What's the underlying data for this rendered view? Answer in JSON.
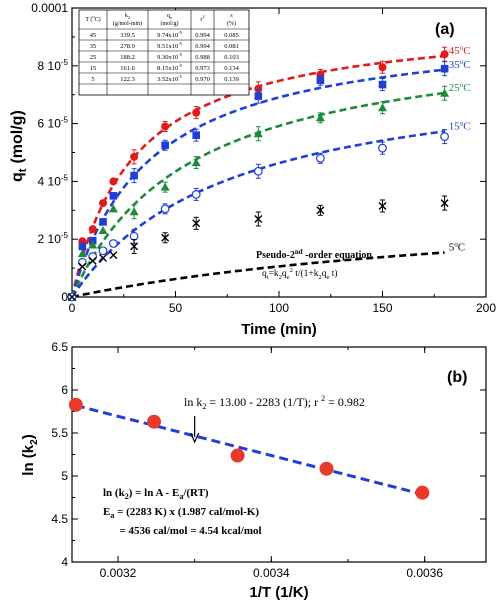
{
  "chart_data": [
    {
      "type": "scatter",
      "panel_label": "(a)",
      "xlabel": "Time  (min)",
      "ylabel": "q",
      "ylabel_sub": "t",
      "ylabel_unit": "(mol/g)",
      "xlim": [
        0,
        200
      ],
      "ylim": [
        0,
        0.0001
      ],
      "x_ticks": [
        0,
        50,
        100,
        150,
        200
      ],
      "x_tick_labels": [
        "0",
        "50",
        "100",
        "150",
        "200"
      ],
      "y_ticks": [
        0,
        2e-05,
        4e-05,
        6e-05,
        8e-05,
        0.0001
      ],
      "y_tick_labels": [
        {
          "m": "0",
          "e": ""
        },
        {
          "m": "2 10",
          "e": "-5"
        },
        {
          "m": "4 10",
          "e": "-5"
        },
        {
          "m": "6 10",
          "e": "-5"
        },
        {
          "m": "8 10",
          "e": "-5"
        },
        {
          "m": "0.0001",
          "e": ""
        }
      ],
      "series": [
        {
          "name": "45",
          "color": "#e31a1c",
          "marker": "filled-circle",
          "x": [
            0,
            5,
            10,
            15,
            20,
            30,
            45,
            60,
            90,
            120,
            150,
            180
          ],
          "y": [
            0,
            1.93e-05,
            2.35e-05,
            3.25e-05,
            4e-05,
            4.85e-05,
            5.9e-05,
            6.38e-05,
            7.2e-05,
            7.7e-05,
            7.95e-05,
            8.4e-05
          ],
          "fit": {
            "qe": 9.74e-05,
            "k2": 339.5
          }
        },
        {
          "name": "35",
          "color": "#1f3fd6",
          "marker": "filled-square",
          "x": [
            0,
            5,
            10,
            15,
            20,
            30,
            45,
            60,
            90,
            120,
            150,
            180
          ],
          "y": [
            0,
            1.75e-05,
            1.95e-05,
            2.6e-05,
            3.5e-05,
            4.2e-05,
            5.25e-05,
            5.6e-05,
            6.95e-05,
            7.5e-05,
            7.35e-05,
            7.9e-05
          ],
          "fit": {
            "qe": 9.51e-05,
            "k2": 278.9
          }
        },
        {
          "name": "25",
          "color": "#1e8a3a",
          "marker": "filled-triangle",
          "x": [
            0,
            5,
            10,
            15,
            20,
            30,
            45,
            60,
            90,
            120,
            150,
            180
          ],
          "y": [
            0,
            1.5e-05,
            1.8e-05,
            2.3e-05,
            3.05e-05,
            2.95e-05,
            3.8e-05,
            4.65e-05,
            5.65e-05,
            6.2e-05,
            6.55e-05,
            7.05e-05
          ],
          "fit": {
            "qe": 9.3e-05,
            "k2": 188.2
          }
        },
        {
          "name": "15",
          "color": "#1f3fd6",
          "marker": "open-circle",
          "x": [
            0,
            5,
            10,
            15,
            20,
            30,
            45,
            60,
            90,
            120,
            150,
            180
          ],
          "y": [
            0,
            1.2e-05,
            1.4e-05,
            1.6e-05,
            1.85e-05,
            2.1e-05,
            3.05e-05,
            3.55e-05,
            4.35e-05,
            4.8e-05,
            5.15e-05,
            5.55e-05
          ],
          "fit": {
            "qe": 8.15e-05,
            "k2": 161.6
          }
        },
        {
          "name": "5",
          "color": "#000000",
          "marker": "x",
          "x": [
            0,
            5,
            10,
            15,
            20,
            30,
            45,
            60,
            90,
            120,
            150,
            180
          ],
          "y": [
            0,
            1.05e-05,
            1.25e-05,
            1.35e-05,
            1.45e-05,
            1.75e-05,
            2.05e-05,
            2.55e-05,
            2.7e-05,
            3e-05,
            3.15e-05,
            3.25e-05
          ],
          "fit": {
            "qe": 3.52e-05,
            "k2": 122.3
          }
        }
      ],
      "series_unit": "o",
      "series_unit_tail": "C",
      "table": {
        "headers": [
          {
            "main": "T (",
            "sup": "o",
            "tail": "C)"
          },
          {
            "main": "k",
            "sub": "2",
            "line2": "(g/mol-min)"
          },
          {
            "main": "q",
            "sub": "e",
            "line2": "(mol/g)"
          },
          {
            "main": "r",
            "sup": "2"
          },
          {
            "main": "s",
            "line2": "(%)"
          }
        ],
        "rows": [
          {
            "T": "45",
            "k2": "339.5",
            "qe": "9.74x10",
            "qe_exp": "-5",
            "r2": "0.994",
            "s": "0.085"
          },
          {
            "T": "35",
            "k2": "278.9",
            "qe": "9.51x10",
            "qe_exp": "-5",
            "r2": "0.994",
            "s": "0.081"
          },
          {
            "T": "25",
            "k2": "188.2",
            "qe": "9.30x10",
            "qe_exp": "-5",
            "r2": "0.988",
            "s": "0.103"
          },
          {
            "T": "15",
            "k2": "161.6",
            "qe": "8.15x10",
            "qe_exp": "-5",
            "r2": "0.973",
            "s": "0.134"
          },
          {
            "T": "5",
            "k2": "122.3",
            "qe": "3.52x10",
            "qe_exp": "-5",
            "r2": "0.970",
            "s": "0.139"
          }
        ]
      },
      "annotation_title": {
        "pre": "Pseudo-2",
        "sup": "nd",
        "post": " -order equation"
      },
      "annotation_eq": {
        "a": "q",
        "a_sub": "t",
        "b": "=k",
        "b_sub": "2",
        "c": "q",
        "c_sub": "e",
        "c_sup": "2",
        "d": " t/(1+k",
        "d_sub": "2",
        "e": "q",
        "e_sub": "e",
        "f": " t)"
      }
    },
    {
      "type": "scatter",
      "panel_label": "(b)",
      "xlabel": "1/T  (1/K)",
      "ylabel": "ln (k",
      "ylabel_sub": "2",
      "ylabel_tail": ")",
      "xlim": [
        0.00314,
        0.00368
      ],
      "ylim": [
        4,
        6.5
      ],
      "x_ticks": [
        0.0032,
        0.0034,
        0.0036
      ],
      "x_tick_labels": [
        "0.0032",
        "0.0034",
        "0.0036"
      ],
      "y_ticks": [
        4,
        4.5,
        5,
        5.5,
        6,
        6.5
      ],
      "y_tick_labels": [
        "4",
        "4.5",
        "5",
        "5.5",
        "6",
        "6.5"
      ],
      "points": {
        "x": [
          0.003145,
          0.003247,
          0.003356,
          0.003472,
          0.003597
        ],
        "y": [
          5.827,
          5.631,
          5.238,
          5.085,
          4.806
        ],
        "color": "#e8392b"
      },
      "fit_line": {
        "intercept": 13.0,
        "slope": -2283,
        "color": "#1f3fd6"
      },
      "fit_label": {
        "a": "ln k",
        "a_sub": "2",
        "b": " = 13.00 - 2283 (1/T); r ",
        "b_sup": "2",
        "c": " = 0.982"
      },
      "arrow_x": 0.0033,
      "equations": [
        {
          "a": "ln (k",
          "a_sub": "2",
          "b": ") = ln A - E",
          "b_sub": "a",
          "c": "/(RT)"
        },
        {
          "a": "E",
          "a_sub": "a",
          "b": " = (2283 K) x (1.987 cal/mol-K)"
        },
        {
          "a": "      = 4536 cal/mol = 4.54 kcal/mol"
        }
      ]
    }
  ]
}
